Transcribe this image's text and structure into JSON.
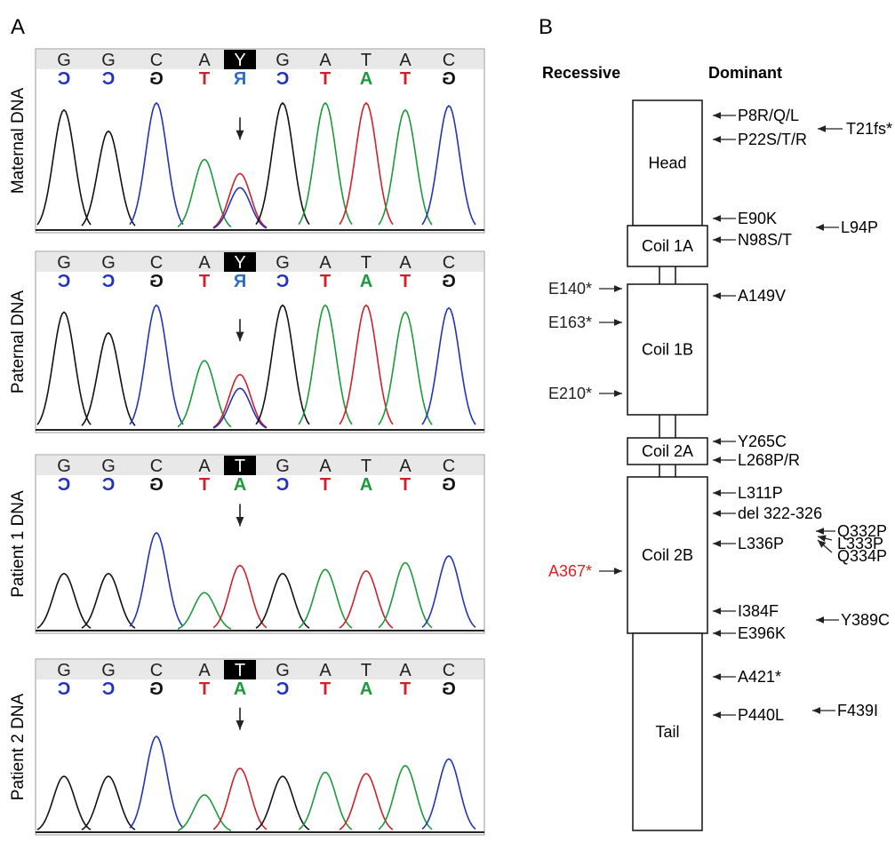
{
  "panel_a": {
    "label": "A",
    "base_colors": {
      "G": "#111111",
      "C": "#2233bb",
      "A": "#1a9a3a",
      "T": "#d0202a",
      "R": "#2a6cc8"
    },
    "highlight": 4,
    "samples": [
      {
        "label": "Maternal DNA",
        "bases": [
          "G",
          "G",
          "C",
          "A",
          "Y",
          "G",
          "A",
          "T",
          "A",
          "C"
        ],
        "complement": [
          "C",
          "C",
          "G",
          "T",
          "R",
          "C",
          "T",
          "A",
          "T",
          "G"
        ]
      },
      {
        "label": "Paternal DNA",
        "bases": [
          "G",
          "G",
          "C",
          "A",
          "Y",
          "G",
          "A",
          "T",
          "A",
          "C"
        ],
        "complement": [
          "C",
          "C",
          "G",
          "T",
          "R",
          "C",
          "T",
          "A",
          "T",
          "G"
        ]
      },
      {
        "label": "Patient 1 DNA",
        "bases": [
          "G",
          "G",
          "C",
          "A",
          "T",
          "G",
          "A",
          "T",
          "A",
          "C"
        ],
        "complement": [
          "C",
          "C",
          "G",
          "T",
          "A",
          "C",
          "T",
          "A",
          "T",
          "G"
        ]
      },
      {
        "label": "Patient 2 DNA",
        "bases": [
          "G",
          "G",
          "C",
          "A",
          "T",
          "G",
          "A",
          "T",
          "A",
          "C"
        ],
        "complement": [
          "C",
          "C",
          "G",
          "T",
          "A",
          "C",
          "T",
          "A",
          "T",
          "G"
        ]
      }
    ]
  },
  "panel_b": {
    "label": "B",
    "recessive_header": "Recessive",
    "dominant_header": "Dominant",
    "domains": [
      "Head",
      "Coil 1A",
      "Coil 1B",
      "Coil 2A",
      "Coil 2B",
      "Tail"
    ],
    "recessive": [
      {
        "label": "E140*"
      },
      {
        "label": "E163*"
      },
      {
        "label": "E210*"
      },
      {
        "label": "A367*",
        "color": "#e02020"
      }
    ],
    "dominant": [
      "P8R/Q/L",
      "P22S/T/R",
      "T21fs*",
      "E90K",
      "N98S/T",
      "L94P",
      "A149V",
      "Y265C",
      "L268P/R",
      "L311P",
      "del 322-326",
      "L336P",
      "Q332P",
      "L333P",
      "Q334P",
      "I384F",
      "E396K",
      "Y389C",
      "A421*",
      "P440L",
      "F439I"
    ]
  }
}
